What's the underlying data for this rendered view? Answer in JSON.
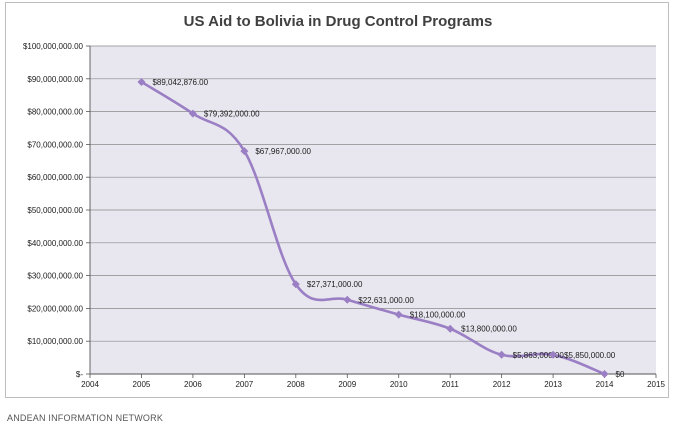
{
  "chart_data": {
    "type": "line",
    "title": "US Aid to Bolivia in Drug Control Programs",
    "x_axis": {
      "ticks": [
        "2004",
        "2005",
        "2006",
        "2007",
        "2008",
        "2009",
        "2010",
        "2011",
        "2012",
        "2013",
        "2014",
        "2015"
      ],
      "range": [
        2004,
        2015
      ]
    },
    "y_axis": {
      "range": [
        0,
        100000000
      ],
      "ticks": [
        "$-",
        "$10,000,000.00",
        "$20,000,000.00",
        "$30,000,000.00",
        "$40,000,000.00",
        "$50,000,000.00",
        "$60,000,000.00",
        "$70,000,000.00",
        "$80,000,000.00",
        "$90,000,000.00",
        "$100,000,000.00"
      ]
    },
    "grid": true,
    "series": [
      {
        "color": "#9b7fc4",
        "points": [
          {
            "x": 2005,
            "y": 89042876,
            "label": "$89,042,876.00"
          },
          {
            "x": 2006,
            "y": 79392000,
            "label": "$79,392,000.00"
          },
          {
            "x": 2007,
            "y": 67967000,
            "label": "$67,967,000.00"
          },
          {
            "x": 2008,
            "y": 27371000,
            "label": "$27,371,000.00"
          },
          {
            "x": 2009,
            "y": 22631000,
            "label": "$22,631,000.00"
          },
          {
            "x": 2010,
            "y": 18100000,
            "label": "$18,100,000.00"
          },
          {
            "x": 2011,
            "y": 13800000,
            "label": "$13,800,000.00"
          },
          {
            "x": 2012,
            "y": 5863000,
            "label": "$5,863,000.00"
          },
          {
            "x": 2013,
            "y": 5850000,
            "label": "$5,850,000.00"
          },
          {
            "x": 2014,
            "y": 0,
            "label": "$0"
          }
        ]
      }
    ],
    "plot_background": "#e8e6ef",
    "gridline_color": "#8a8a8a"
  },
  "source": "ANDEAN INFORMATION NETWORK"
}
